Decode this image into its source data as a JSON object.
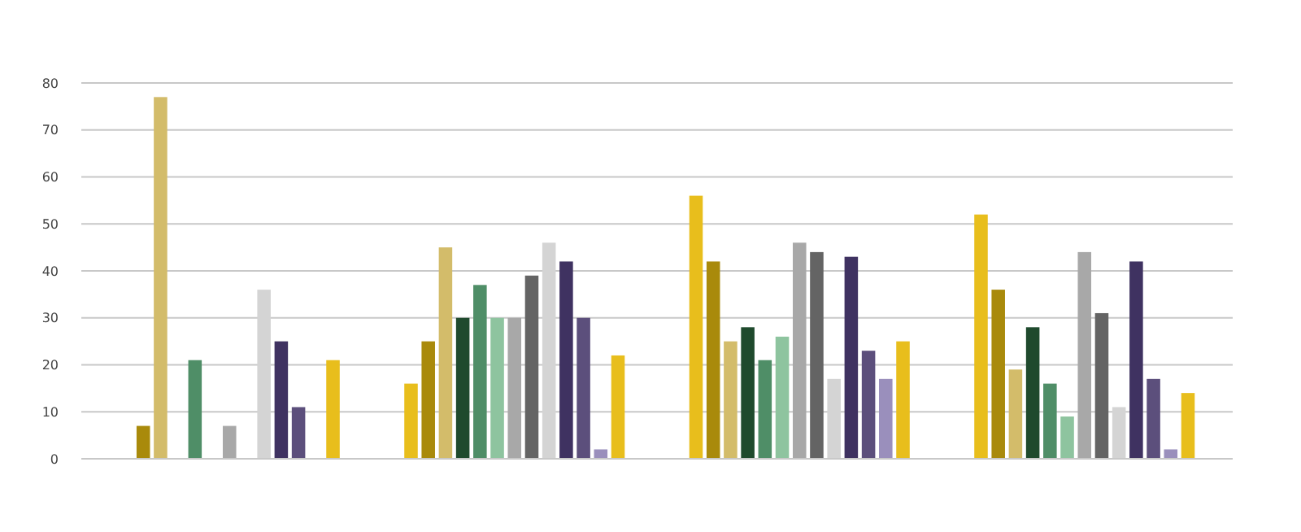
{
  "chart_data": {
    "type": "bar",
    "categories": [
      null,
      null,
      null,
      null
    ],
    "series": [
      {
        "color": "#e8be1c",
        "values": [
          0,
          16,
          56,
          52
        ]
      },
      {
        "color": "#a98a0b",
        "values": [
          7,
          25,
          42,
          36
        ]
      },
      {
        "color": "#d3bc6a",
        "values": [
          77,
          45,
          25,
          19
        ]
      },
      {
        "color": "#1f4a2d",
        "values": [
          0,
          30,
          28,
          28
        ]
      },
      {
        "color": "#4f8e67",
        "values": [
          21,
          37,
          21,
          16
        ]
      },
      {
        "color": "#8ec49f",
        "values": [
          0,
          30,
          26,
          9
        ]
      },
      {
        "color": "#a8a8a8",
        "values": [
          7,
          30,
          46,
          44
        ]
      },
      {
        "color": "#646464",
        "values": [
          0,
          39,
          44,
          31
        ]
      },
      {
        "color": "#d4d4d4",
        "values": [
          36,
          46,
          17,
          11
        ]
      },
      {
        "color": "#3f3261",
        "values": [
          25,
          42,
          43,
          42
        ]
      },
      {
        "color": "#5c4f7c",
        "values": [
          11,
          30,
          23,
          17
        ]
      },
      {
        "color": "#9a8fbc",
        "values": [
          0,
          2,
          17,
          2
        ]
      },
      {
        "color": "#e8be1c",
        "values": [
          21,
          22,
          25,
          14
        ]
      }
    ],
    "ylim": [
      0,
      80
    ],
    "yticks": [
      0,
      10,
      20,
      30,
      40,
      50,
      60,
      70,
      80
    ],
    "grid": "y"
  }
}
